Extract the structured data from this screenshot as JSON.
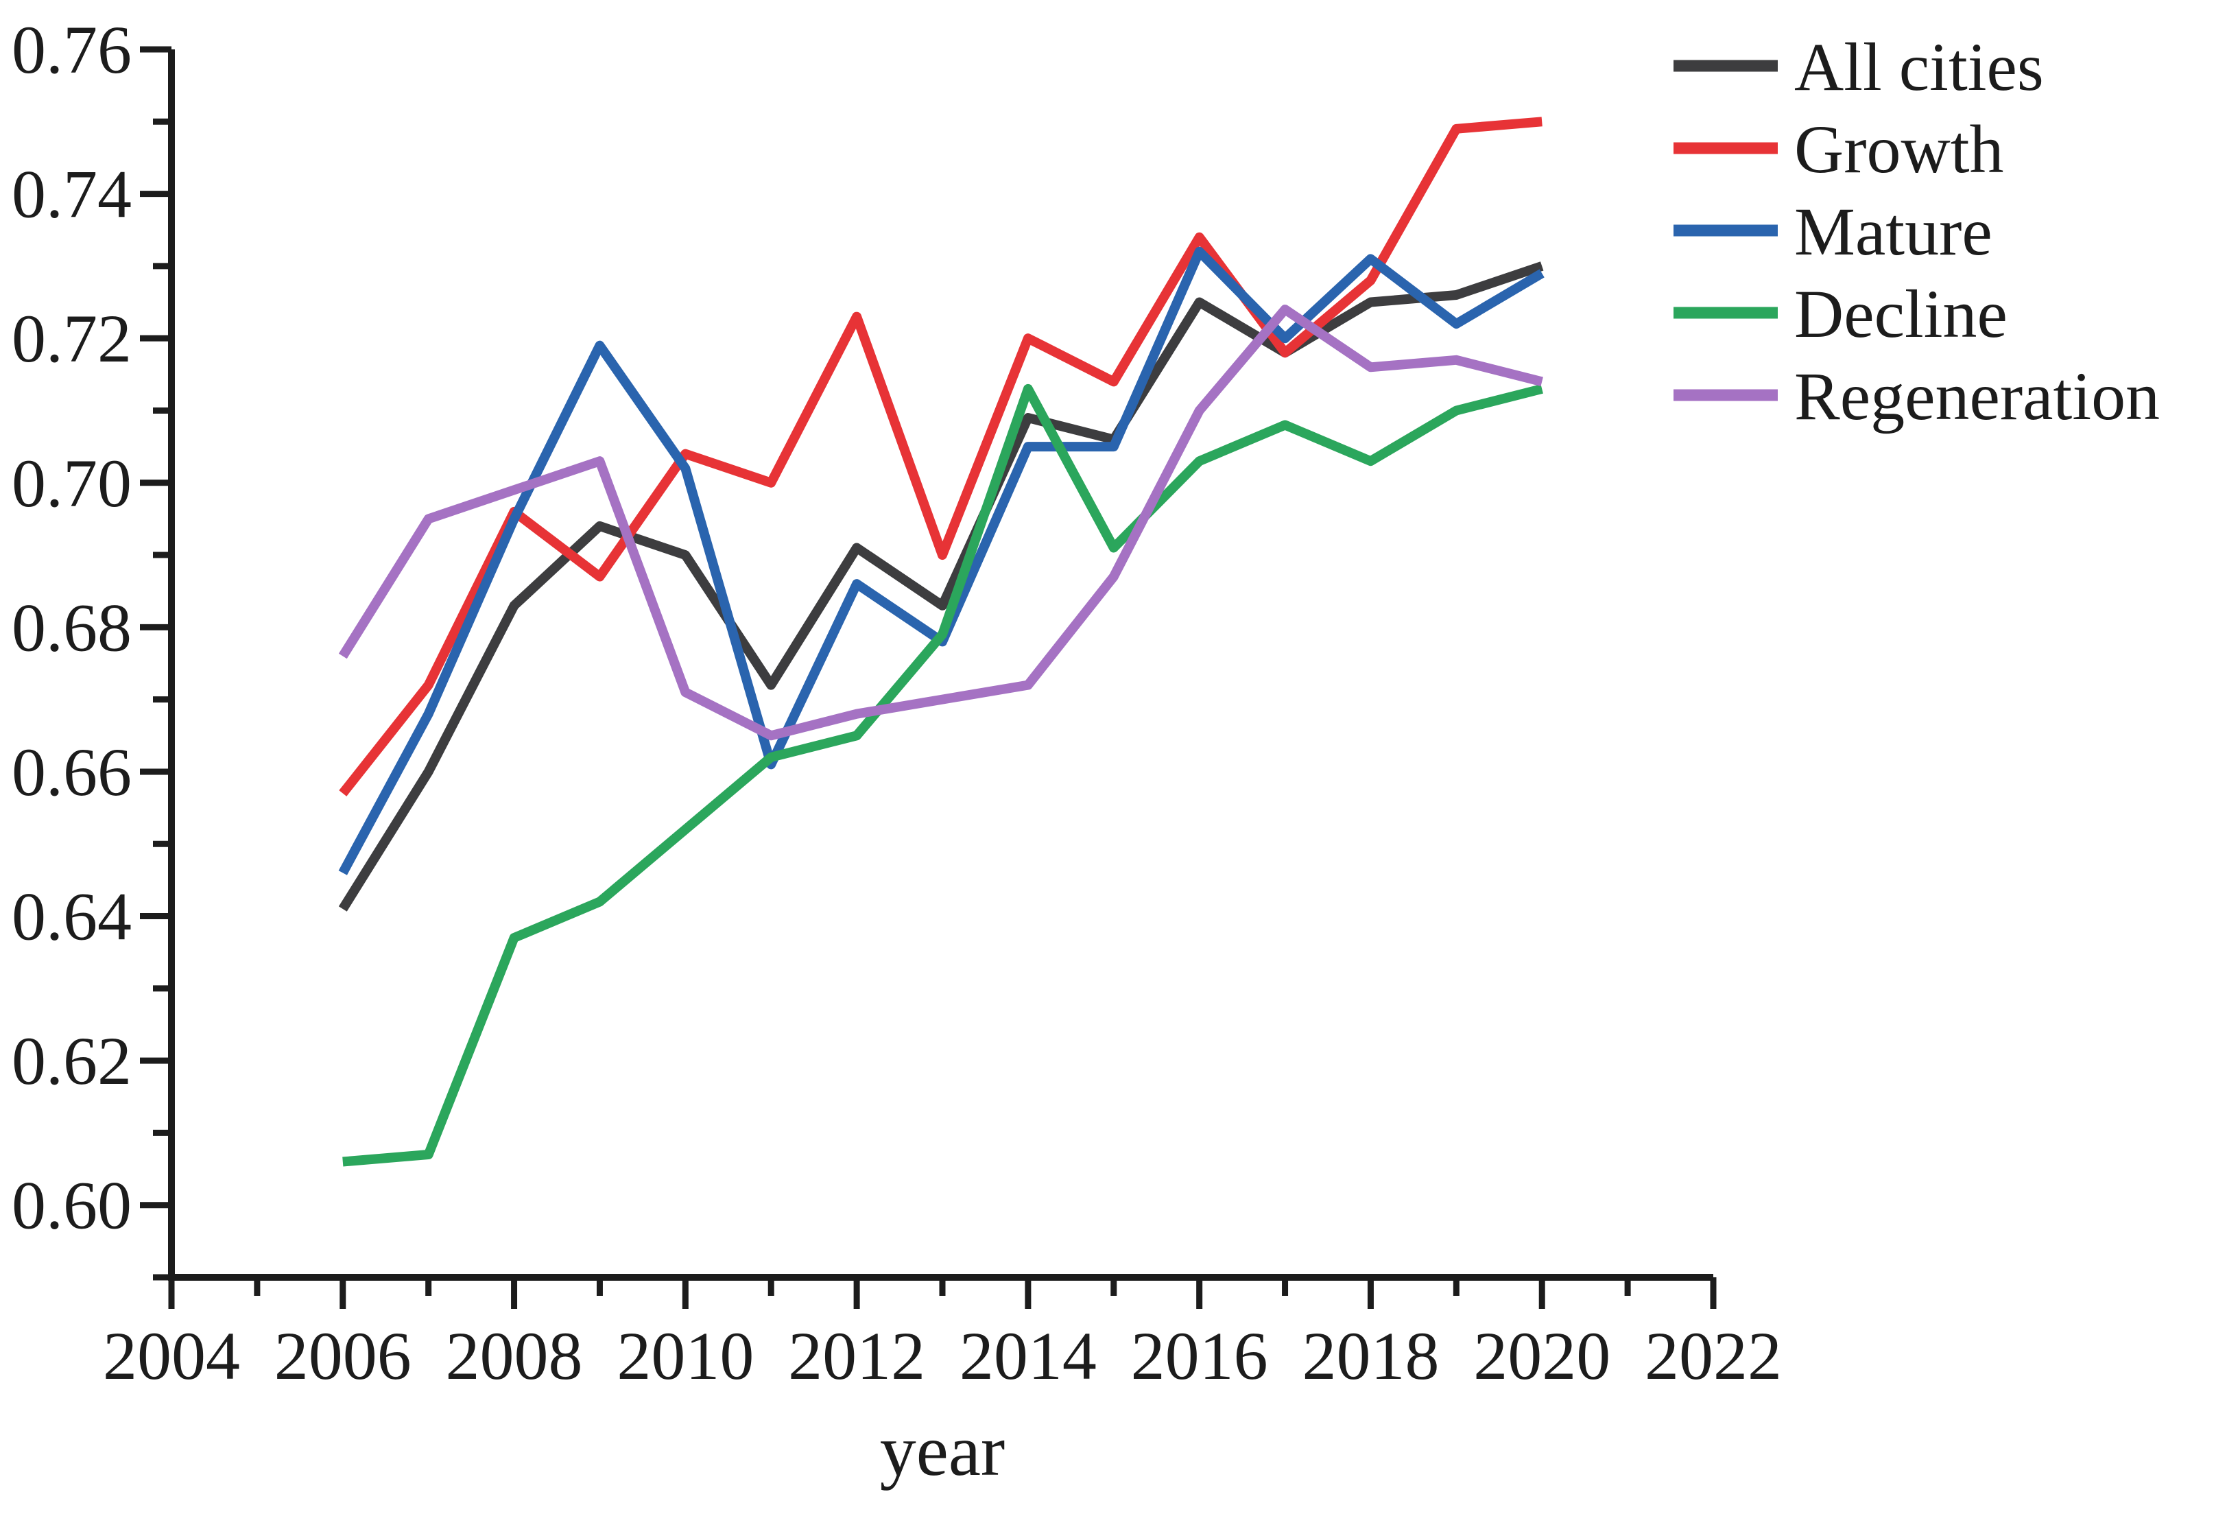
{
  "figure": {
    "background": "#ffffff",
    "axis_color": "#1c1c1c",
    "text_color": "#1c1c1c"
  },
  "chart_data": {
    "type": "line",
    "title": "",
    "xlabel": "year",
    "ylabel": "",
    "xlim": [
      2004,
      2022
    ],
    "ylim": [
      0.59,
      0.76
    ],
    "grid": false,
    "legend_position": "top-right",
    "x_tick_labels": [
      "2004",
      "2006",
      "2008",
      "2010",
      "2012",
      "2014",
      "2016",
      "2018",
      "2020",
      "2022"
    ],
    "y_tick_labels": [
      "0.60",
      "0.62",
      "0.64",
      "0.66",
      "0.68",
      "0.70",
      "0.72",
      "0.74",
      "0.76"
    ],
    "x_major_tick_step": 2,
    "x_minor_tick_step": 1,
    "y_major_tick_step": 0.02,
    "y_minor_tick_step": 0.01,
    "x": [
      2006,
      2007,
      2008,
      2009,
      2010,
      2011,
      2012,
      2013,
      2014,
      2015,
      2016,
      2017,
      2018,
      2019,
      2020
    ],
    "series": [
      {
        "name": "All cities",
        "color": "#3d3d3f",
        "values": [
          0.641,
          0.66,
          0.683,
          0.694,
          0.69,
          0.672,
          0.691,
          0.683,
          0.709,
          0.706,
          0.725,
          0.718,
          0.725,
          0.726,
          0.73
        ]
      },
      {
        "name": "Growth",
        "color": "#e73336",
        "values": [
          0.657,
          0.672,
          0.696,
          0.687,
          0.704,
          0.7,
          0.723,
          0.69,
          0.72,
          0.714,
          0.734,
          0.718,
          0.728,
          0.749,
          0.75
        ]
      },
      {
        "name": "Mature",
        "color": "#2a64ae",
        "values": [
          0.646,
          0.668,
          0.695,
          0.719,
          0.702,
          0.661,
          0.686,
          0.678,
          0.705,
          0.705,
          0.732,
          0.72,
          0.731,
          0.722,
          0.729
        ]
      },
      {
        "name": "Decline",
        "color": "#2ba65c",
        "values": [
          0.606,
          0.607,
          0.637,
          0.642,
          0.652,
          0.662,
          0.665,
          0.679,
          0.713,
          0.691,
          0.703,
          0.708,
          0.703,
          0.71,
          0.713
        ]
      },
      {
        "name": "Regeneration",
        "color": "#a572c3",
        "values": [
          0.676,
          0.695,
          0.699,
          0.703,
          0.671,
          0.665,
          0.668,
          0.67,
          0.672,
          0.687,
          0.71,
          0.724,
          0.716,
          0.717,
          0.714
        ]
      }
    ]
  }
}
